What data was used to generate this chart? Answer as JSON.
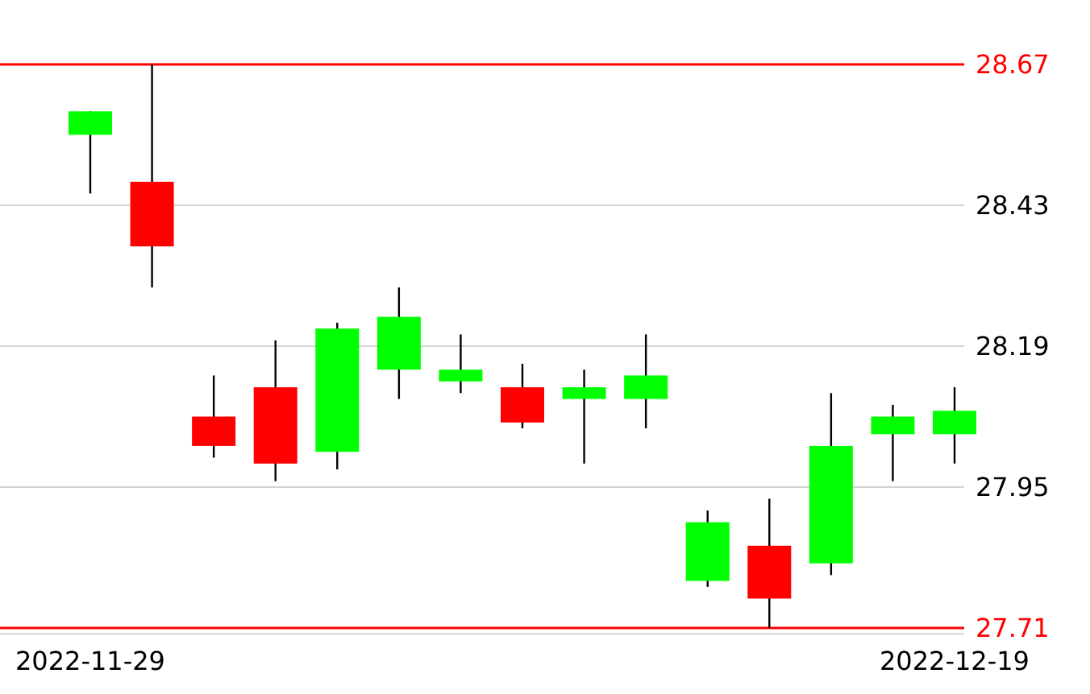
{
  "chart_data": {
    "type": "candlestick",
    "categories": [
      "2022-11-29",
      null,
      null,
      null,
      null,
      null,
      null,
      null,
      null,
      null,
      null,
      null,
      null,
      null,
      "2022-12-19"
    ],
    "ohlc": [
      [
        28.55,
        28.59,
        28.45,
        28.59
      ],
      [
        28.47,
        28.67,
        28.29,
        28.36
      ],
      [
        28.07,
        28.14,
        28.0,
        28.02
      ],
      [
        28.12,
        28.2,
        27.96,
        27.99
      ],
      [
        28.01,
        28.23,
        27.98,
        28.22
      ],
      [
        28.15,
        28.29,
        28.1,
        28.24
      ],
      [
        28.13,
        28.21,
        28.11,
        28.15
      ],
      [
        28.12,
        28.16,
        28.05,
        28.06
      ],
      [
        28.1,
        28.15,
        27.99,
        28.12
      ],
      [
        28.1,
        28.21,
        28.05,
        28.14
      ],
      [
        27.79,
        27.91,
        27.78,
        27.89
      ],
      [
        27.85,
        27.93,
        27.71,
        27.76
      ],
      [
        27.82,
        28.11,
        27.8,
        28.02
      ],
      [
        28.04,
        28.09,
        27.96,
        28.07
      ],
      [
        28.04,
        28.12,
        27.99,
        28.08
      ]
    ],
    "colors": [
      "#00ff00",
      "#ff0000",
      "#ff0000",
      "#ff0000",
      "#00ff00",
      "#00ff00",
      "#00ff00",
      "#ff0000",
      "#00ff00",
      "#00ff00",
      "#00ff00",
      "#ff0000",
      "#00ff00",
      "#00ff00",
      "#00ff00"
    ],
    "ylim": [
      27.7,
      28.67
    ],
    "yticks": [
      27.95,
      28.19,
      28.43
    ],
    "ref_lines": [
      {
        "axis": "y",
        "value": 28.67,
        "label": "28.67",
        "color": "#ff0000"
      },
      {
        "axis": "y",
        "value": 27.71,
        "label": "27.71",
        "color": "#ff0000"
      }
    ],
    "grid": "y"
  }
}
